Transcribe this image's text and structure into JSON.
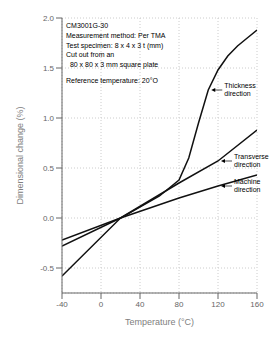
{
  "chart_data": {
    "type": "line",
    "title": "",
    "xlabel": "Temperature (°C)",
    "ylabel": "Dimensional change (%)",
    "xlim": [
      -40,
      160
    ],
    "ylim": [
      -0.75,
      2.0
    ],
    "xticks": [
      -40,
      0,
      40,
      80,
      120,
      160
    ],
    "yticks": [
      -0.5,
      {
        "value": 0,
        "label": "0.0"
      },
      0.5,
      {
        "value": 1.0,
        "label": "1.0"
      },
      1.5,
      {
        "value": 2.0,
        "label": "2.0"
      }
    ],
    "grid": true,
    "x": [
      -40,
      20,
      60,
      80,
      90,
      100,
      110,
      120,
      130,
      140,
      150,
      160
    ],
    "series": [
      {
        "name": "Thickness\ndirection",
        "color": "#111111",
        "values": [
          -0.58,
          0.0,
          0.22,
          0.38,
          0.6,
          0.95,
          1.28,
          1.48,
          1.62,
          1.72,
          1.8,
          1.88
        ]
      },
      {
        "name": "Transverse\ndirection",
        "color": "#111111",
        "values": [
          -0.28,
          0.0,
          null,
          0.35,
          null,
          null,
          null,
          0.57,
          null,
          null,
          null,
          0.88
        ]
      },
      {
        "name": "Machine\ndirection",
        "color": "#111111",
        "values": [
          -0.22,
          0.0,
          null,
          0.2,
          null,
          null,
          null,
          0.32,
          null,
          null,
          null,
          0.43
        ]
      }
    ],
    "annotations": [
      "CM3001G-30",
      "Measurement method: Per TMA",
      "Test specimen: 8 x 4 x 3 t (mm)",
      "Cut out from an",
      "  80 x 80 x 3 mm square plate",
      "Reference temperature: 20°O"
    ]
  }
}
